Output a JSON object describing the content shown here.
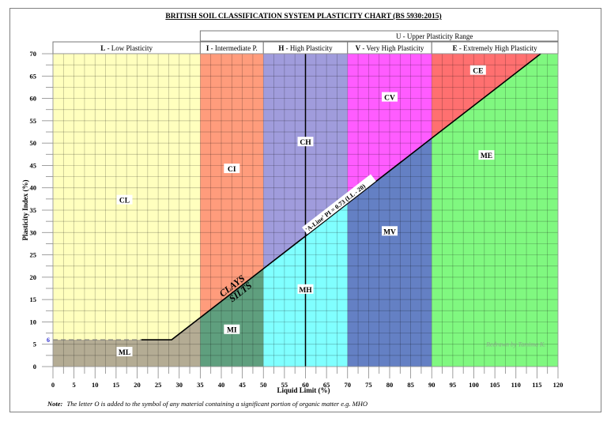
{
  "chart_data": {
    "type": "area",
    "title": "BRITISH SOIL CLASSIFICATION SYSTEM PLASTICITY CHART (BS 5930:2015)",
    "xlabel": "Liquid Limit (%)",
    "ylabel": "Plasticity Index (%)",
    "xlim": [
      0,
      120
    ],
    "ylim": [
      0,
      70
    ],
    "x_ticks": [
      0,
      5,
      10,
      15,
      20,
      25,
      30,
      35,
      40,
      45,
      50,
      55,
      60,
      65,
      70,
      75,
      80,
      85,
      90,
      95,
      100,
      105,
      110,
      115,
      120
    ],
    "y_ticks": [
      0,
      5,
      10,
      15,
      20,
      25,
      30,
      35,
      40,
      45,
      50,
      55,
      60,
      65,
      70
    ],
    "grid": true,
    "upper_header": "U - Upper Plasticity Range",
    "plasticity_ranges": [
      {
        "code": "L",
        "name": "Low Plasticity",
        "ll_min": 0,
        "ll_max": 35
      },
      {
        "code": "I",
        "name": "Intermediate P.",
        "ll_min": 35,
        "ll_max": 50
      },
      {
        "code": "H",
        "name": "High Plasticity",
        "ll_min": 50,
        "ll_max": 70
      },
      {
        "code": "V",
        "name": "Very High Plasticity",
        "ll_min": 70,
        "ll_max": 90
      },
      {
        "code": "E",
        "name": "Extremely High Plasticity",
        "ll_min": 90,
        "ll_max": 120
      }
    ],
    "zones": [
      {
        "label": "CL",
        "color": "#ffffbe",
        "label_at": [
          17,
          37
        ]
      },
      {
        "label": "ML",
        "color": "#b4ac94",
        "label_at": [
          17,
          3
        ]
      },
      {
        "label": "CI",
        "color": "#ff9c7c",
        "label_at": [
          42.5,
          44
        ]
      },
      {
        "label": "MI",
        "color": "#5f9f7e",
        "label_at": [
          42.5,
          8
        ]
      },
      {
        "label": "CH",
        "color": "#a09cdc",
        "label_at": [
          60,
          50
        ]
      },
      {
        "label": "MH",
        "color": "#80ffff",
        "label_at": [
          60,
          17
        ]
      },
      {
        "label": "CV",
        "color": "#ff5cff",
        "label_at": [
          80,
          60
        ]
      },
      {
        "label": "MV",
        "color": "#6480c4",
        "label_at": [
          80,
          30
        ]
      },
      {
        "label": "CE",
        "color": "#ff7070",
        "label_at": [
          101,
          66
        ]
      },
      {
        "label": "ME",
        "color": "#80f880",
        "label_at": [
          103,
          47
        ]
      }
    ],
    "a_line": {
      "label": "'A-Line' PI = 0.73 (LL - 20)",
      "equation": "PI = 0.73 * (LL - 20)",
      "points": [
        [
          21,
          6
        ],
        [
          28.2,
          6
        ],
        [
          35,
          10.95
        ],
        [
          50,
          21.9
        ],
        [
          70,
          36.5
        ],
        [
          90,
          51.1
        ],
        [
          115.9,
          70
        ]
      ]
    },
    "reference_line": {
      "type": "vertical",
      "ll": 60
    },
    "dashed_line": {
      "type": "horizontal",
      "pi": 6,
      "label": "6"
    },
    "annotations": [
      "CLAYS",
      "SILTS",
      "Redrawn by Tamima K."
    ],
    "note_prefix": "Note:",
    "note": "The letter O is added to the symbol of any material containing a significant portion of organic matter e.g. MHO"
  }
}
